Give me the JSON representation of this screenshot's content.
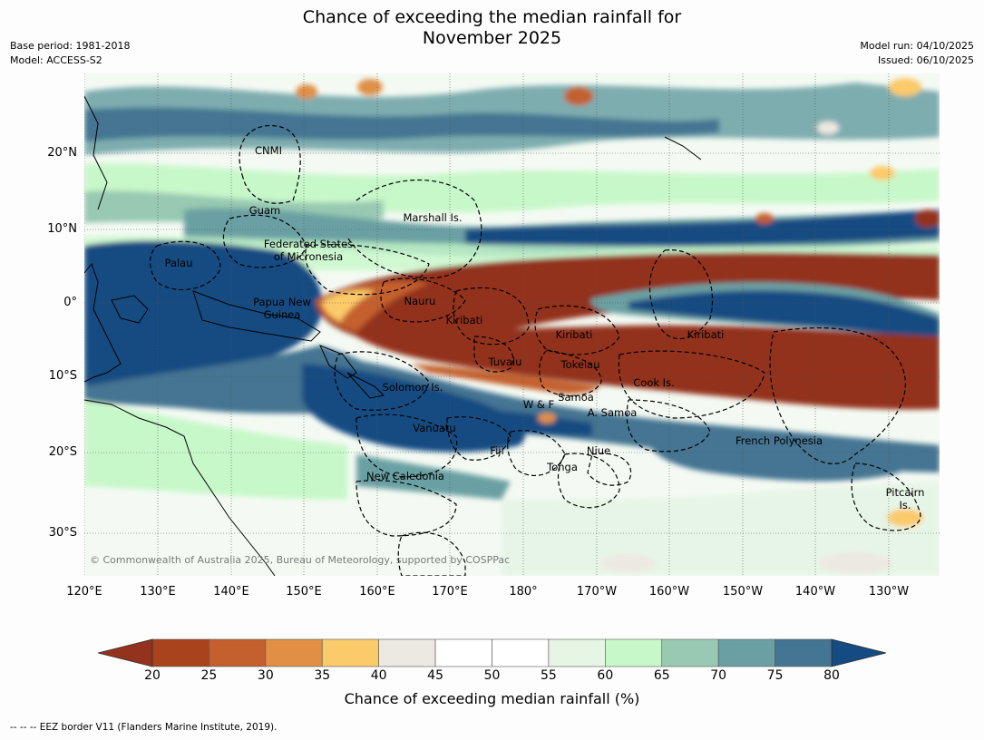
{
  "title": {
    "line1": "Chance of exceeding the median rainfall for",
    "line2": "November 2025"
  },
  "meta": {
    "base_period": "Base period: 1981-2018",
    "model": "Model: ACCESS-S2",
    "model_run": "Model run: 04/10/2025",
    "issued": "Issued: 06/10/2025"
  },
  "map": {
    "latitudes": [
      "20°N",
      "10°N",
      "0°",
      "10°S",
      "20°S",
      "30°S"
    ],
    "longitudes": [
      "120°E",
      "130°E",
      "140°E",
      "150°E",
      "160°E",
      "170°E",
      "180°",
      "170°W",
      "160°W",
      "150°W",
      "140°W",
      "130°W"
    ],
    "regions": [
      "CNMI",
      "Guam",
      "Marshall Is.",
      "Federated States\nof Micronesia",
      "Palau",
      "Papua New\nGuinea",
      "Nauru",
      "Kiribati",
      "Kiribati",
      "Kiribati",
      "Tuvalu",
      "Tokelau",
      "Solomon Is.",
      "Samoa",
      "W & F",
      "A. Samoa",
      "Cook Is.",
      "Vanuatu",
      "Fiji",
      "Niue",
      "Tonga",
      "French Polynesia",
      "New Caledonia",
      "Pitcairn\nIs."
    ],
    "copyright": "© Commonwealth of Australia 2025, Bureau of Meteorology, supported by COSPPac"
  },
  "colorbar": {
    "ticks": [
      "20",
      "25",
      "30",
      "35",
      "40",
      "45",
      "50",
      "55",
      "60",
      "65",
      "70",
      "75",
      "80"
    ],
    "colors": [
      "#a8431e",
      "#c4602e",
      "#e08f45",
      "#fbca6a",
      "#ece9e2",
      "#ffffff",
      "#ffffff",
      "#e6f5e4",
      "#c7f8c9",
      "#98c9b2",
      "#6aa0a3",
      "#447592"
    ],
    "low_extend_color": "#93321d",
    "high_extend_color": "#144b82",
    "label": "Chance of exceeding median rainfall (%)"
  },
  "footer": "--  --  -- EEZ border V11 (Flanders Marine Institute, 2019)."
}
